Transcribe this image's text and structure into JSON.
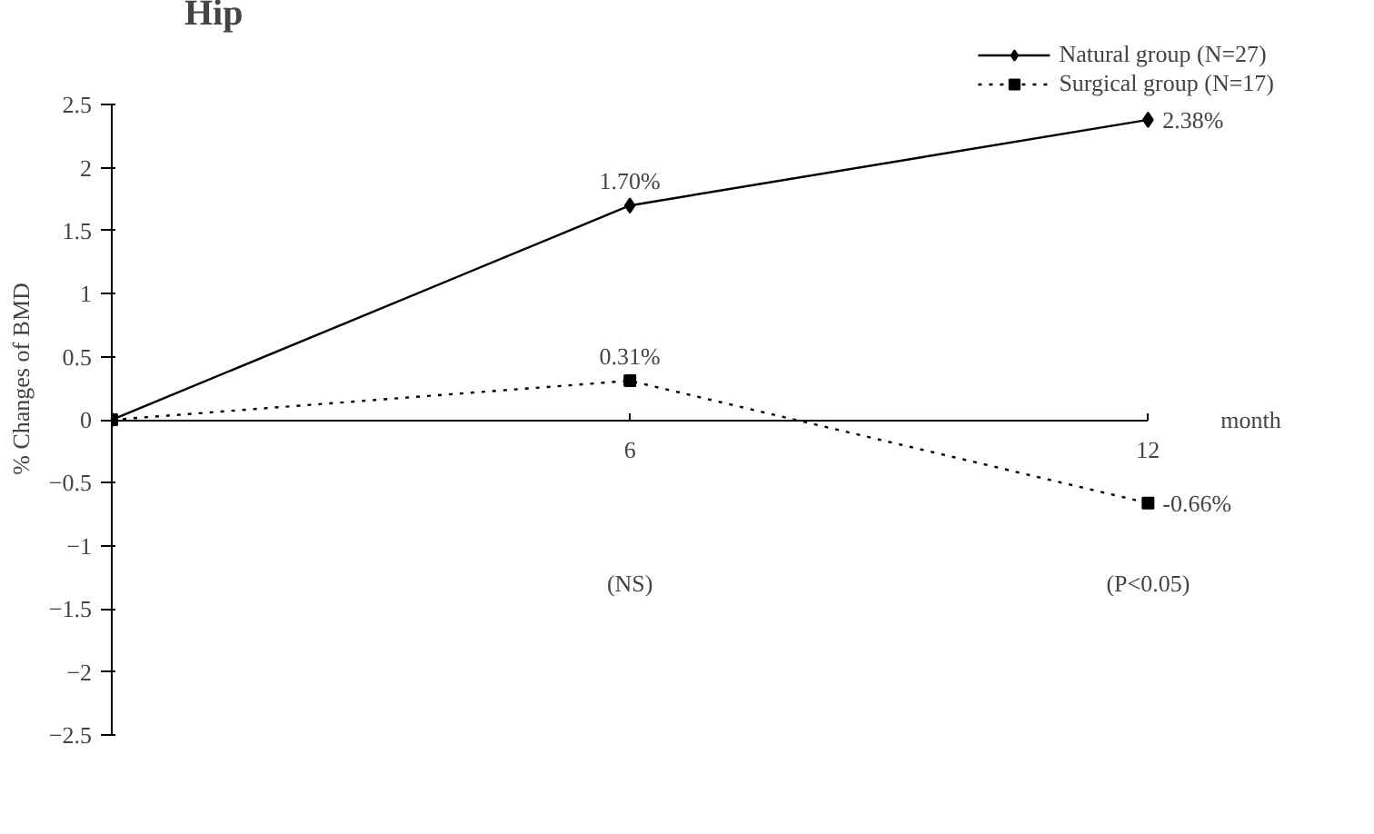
{
  "chart_data": {
    "type": "line",
    "title": "Hip",
    "ylabel": "% Changes of BMD",
    "xlabel": "month",
    "x": [
      0,
      6,
      12
    ],
    "series": [
      {
        "name": "Natural group (N=27)",
        "color": "#000000",
        "values": [
          0,
          1.7,
          2.38
        ],
        "marker": "diamond",
        "line_style": "solid",
        "value_labels": [
          null,
          "1.70%",
          "2.38%"
        ]
      },
      {
        "name": "Surgical group (N=17)",
        "color": "#000000",
        "values": [
          0,
          0.31,
          -0.66
        ],
        "marker": "square",
        "line_style": "dotted",
        "value_labels": [
          null,
          "0.31%",
          "-0.66%"
        ]
      }
    ],
    "xlim": [
      0,
      12
    ],
    "xticks": [
      6,
      12
    ],
    "ylim": [
      -2.5,
      2.5
    ],
    "yticks": [
      -2.5,
      -2,
      -1.5,
      -1,
      -0.5,
      0,
      0.5,
      1,
      1.5,
      2,
      2.5
    ],
    "annotations": [
      "(NS)",
      "(P<0.05)"
    ],
    "grid": false,
    "legend": "top right"
  }
}
